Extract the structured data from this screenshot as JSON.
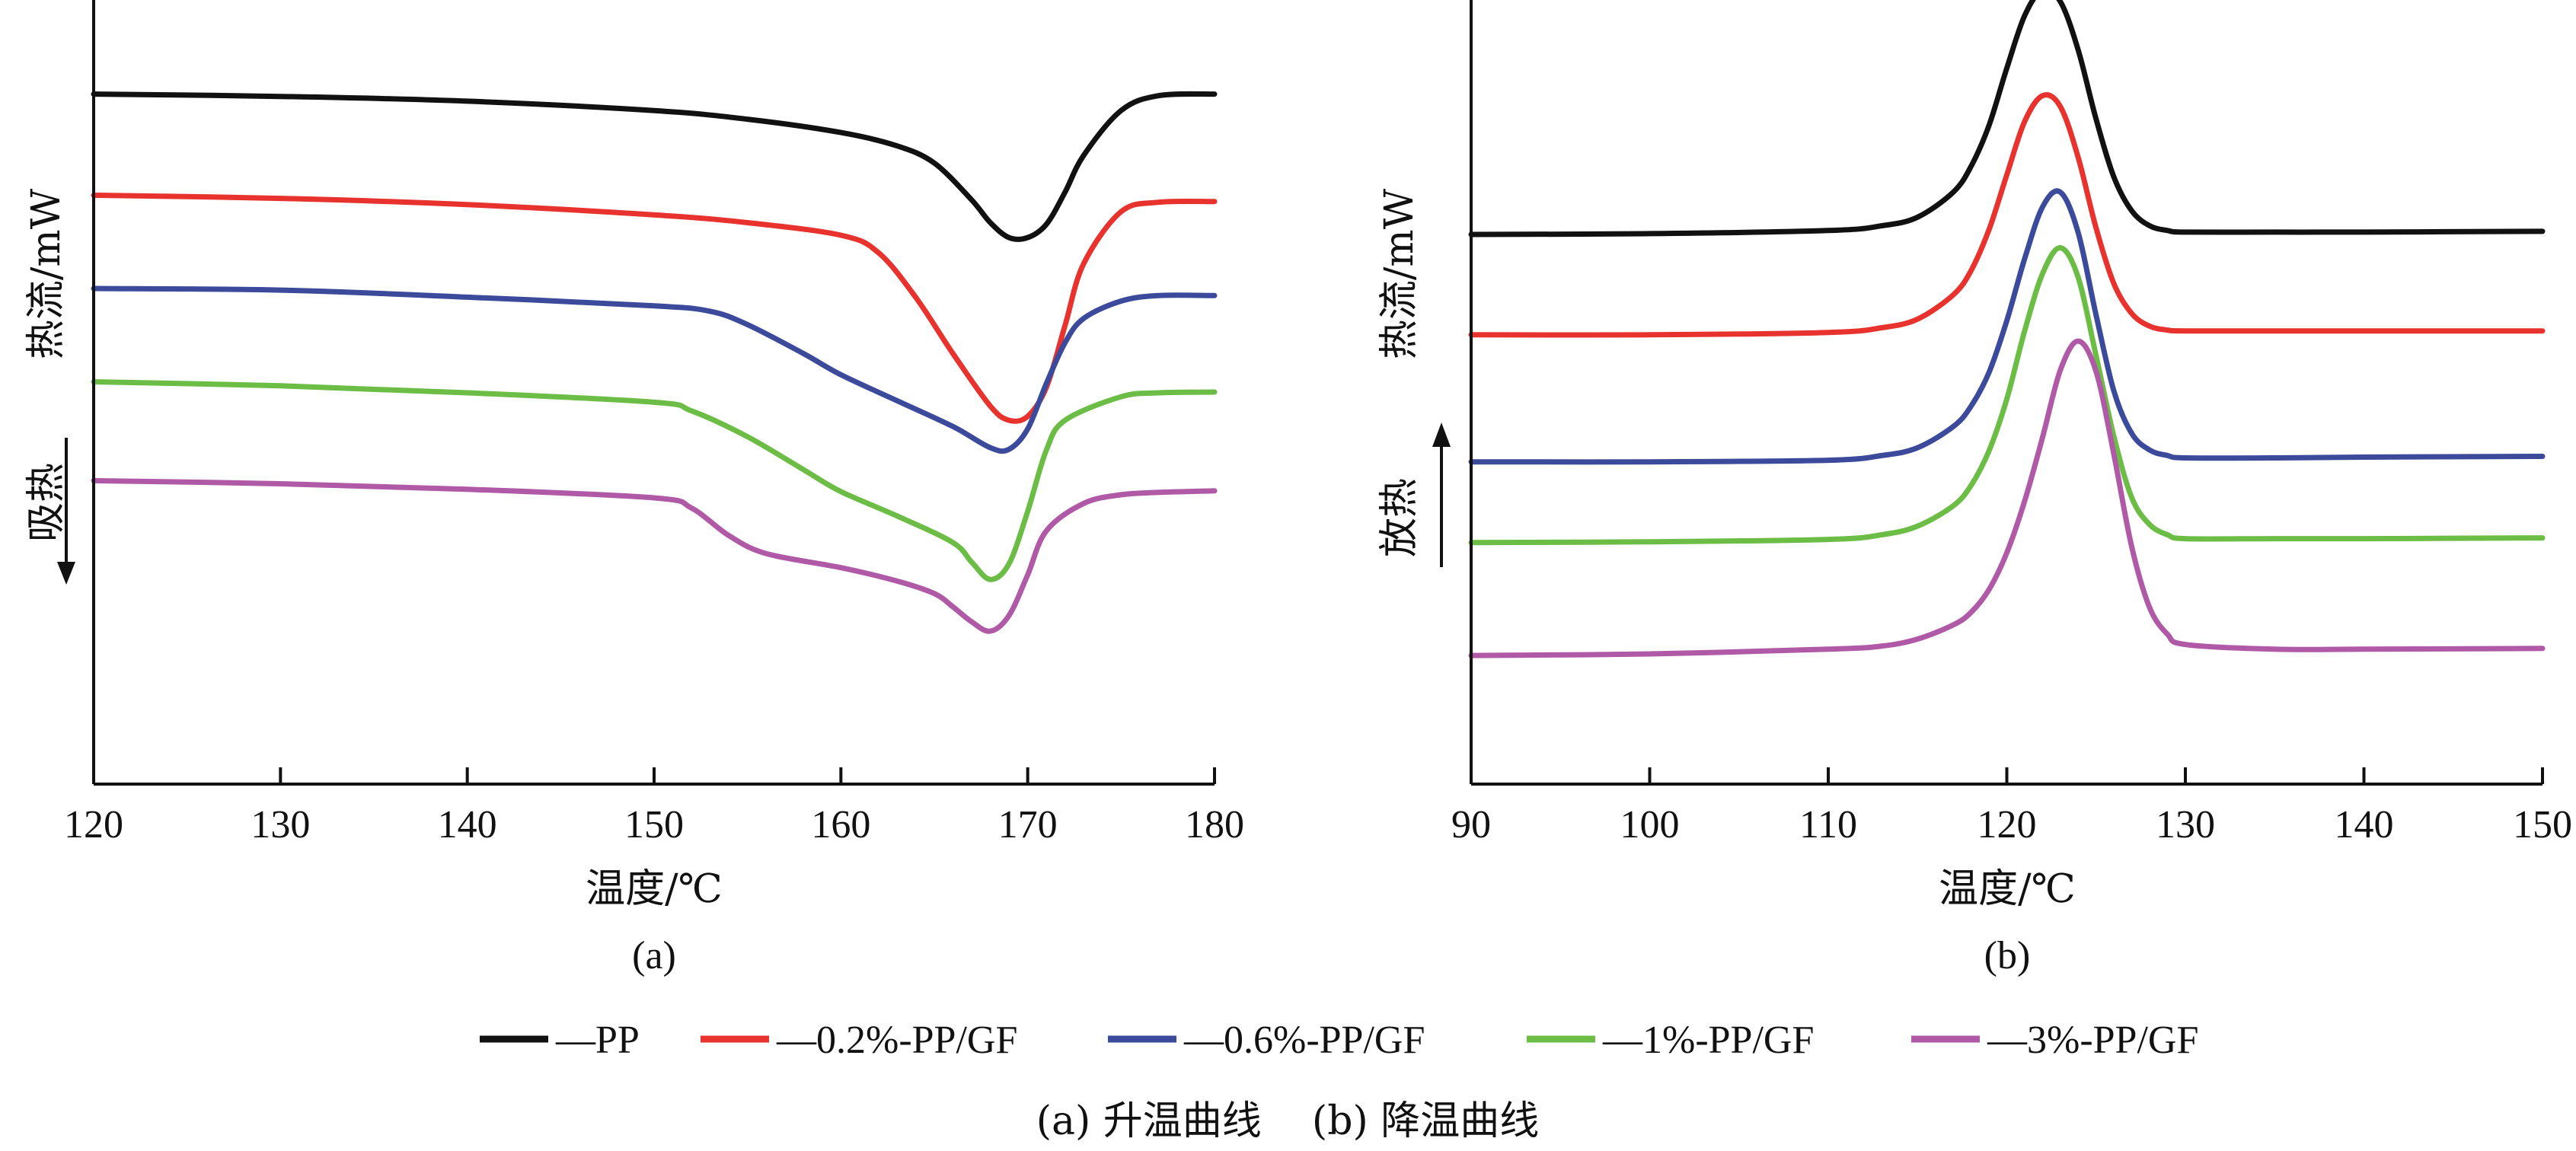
{
  "figure": {
    "caption": "(a) 升温曲线    (b) 降温曲线"
  },
  "legend": [
    {
      "label": "—PP",
      "color": "#111111"
    },
    {
      "label": "—0.2%-PP/GF",
      "color": "#e8322d"
    },
    {
      "label": "—0.6%-PP/GF",
      "color": "#3b4a9a"
    },
    {
      "label": "—1%-PP/GF",
      "color": "#6cbd45"
    },
    {
      "label": "—3%-PP/GF",
      "color": "#b05aa7"
    }
  ],
  "chart_data": [
    {
      "type": "line",
      "panel_label": "(a)",
      "xlabel": "温度/℃",
      "ylabel": "热流/mW",
      "direction_label": "吸热",
      "direction_arrow": "down",
      "xlim": [
        120,
        180
      ],
      "xticks": [
        120,
        130,
        140,
        150,
        160,
        170,
        180
      ],
      "ylim": [
        0,
        100
      ],
      "y_ticks_shown": false,
      "series": [
        {
          "name": "PP",
          "color": "#111111",
          "x": [
            120,
            130,
            140,
            150,
            155,
            160,
            163,
            165,
            167,
            168,
            169,
            170,
            171,
            172,
            173,
            175,
            177,
            180
          ],
          "y": [
            88,
            87.7,
            87.1,
            85.9,
            84.8,
            83.1,
            81.4,
            79.2,
            74.5,
            71.6,
            69.7,
            69.7,
            71.4,
            75.5,
            80.2,
            85.9,
            87.8,
            88
          ]
        },
        {
          "name": "0.2%-PP/GF",
          "color": "#e8322d",
          "x": [
            120,
            130,
            140,
            150,
            155,
            160,
            162,
            164,
            166,
            168,
            169,
            170,
            171,
            172,
            173,
            175,
            177,
            180
          ],
          "y": [
            75.1,
            74.7,
            73.9,
            72.6,
            71.6,
            70,
            67.8,
            62.1,
            54.9,
            48.2,
            46.4,
            46.9,
            50.6,
            58.5,
            66.4,
            73,
            74.2,
            74.3
          ]
        },
        {
          "name": "0.6%-PP/GF",
          "color": "#3b4a9a",
          "x": [
            120,
            130,
            140,
            150,
            153,
            155,
            158,
            160,
            163,
            166,
            168,
            169,
            170,
            171,
            172,
            173,
            175,
            177,
            180
          ],
          "y": [
            63.2,
            63,
            62.1,
            61,
            60.3,
            58.6,
            54.9,
            52.2,
            48.9,
            45.6,
            42.9,
            42.7,
            45.3,
            51.1,
            56.3,
            59.4,
            61.6,
            62.3,
            62.3
          ]
        },
        {
          "name": "1%-PP/GF",
          "color": "#6cbd45",
          "x": [
            120,
            130,
            140,
            150,
            152,
            155,
            158,
            160,
            163,
            166,
            167,
            168,
            169,
            170,
            171,
            172,
            175,
            177,
            180
          ],
          "y": [
            51.3,
            50.8,
            49.9,
            48.7,
            47.6,
            44.3,
            40.1,
            37.3,
            34.2,
            30.8,
            28.3,
            26.1,
            28.1,
            34.8,
            42.6,
            46.4,
            49.4,
            49.9,
            50
          ]
        },
        {
          "name": "3%-PP/GF",
          "color": "#b05aa7",
          "x": [
            120,
            130,
            140,
            150,
            152,
            154,
            156,
            160,
            163,
            165,
            166,
            167,
            168,
            169,
            170,
            171,
            173,
            175,
            177,
            180
          ],
          "y": [
            38.7,
            38.3,
            37.6,
            36.5,
            35.2,
            31.7,
            29.4,
            27.6,
            25.9,
            24.3,
            22.6,
            20.7,
            19.5,
            21.5,
            26.7,
            32.3,
            35.8,
            36.9,
            37.2,
            37.4
          ]
        }
      ]
    },
    {
      "type": "line",
      "panel_label": "(b)",
      "xlabel": "温度/℃",
      "ylabel": "热流/mW",
      "direction_label": "放热",
      "direction_arrow": "up",
      "xlim": [
        90,
        150
      ],
      "xticks": [
        90,
        100,
        110,
        120,
        130,
        140,
        150
      ],
      "ylim": [
        0,
        100
      ],
      "y_ticks_shown": false,
      "series": [
        {
          "name": "PP",
          "color": "#111111",
          "x": [
            90,
            100,
            110,
            113,
            115,
            117,
            118,
            119,
            120,
            121,
            122,
            123,
            124,
            125,
            126,
            127,
            128,
            129,
            130,
            135,
            140,
            150
          ],
          "y": [
            70.1,
            70.2,
            70.6,
            71.2,
            72.3,
            75.5,
            78.8,
            84,
            91.3,
            98,
            101.3,
            99.8,
            93.6,
            84.8,
            77.4,
            73.1,
            71.2,
            70.6,
            70.4,
            70.4,
            70.4,
            70.5
          ]
        },
        {
          "name": "0.2%-PP/GF",
          "color": "#e8322d",
          "x": [
            90,
            100,
            110,
            113,
            115,
            117,
            118,
            119,
            120,
            121,
            122,
            123,
            124,
            125,
            126,
            127,
            128,
            129,
            130,
            135,
            140,
            150
          ],
          "y": [
            57.3,
            57.3,
            57.6,
            58.2,
            59.3,
            62.4,
            65.5,
            70.7,
            77.7,
            84.5,
            87.8,
            86.4,
            79.9,
            70.9,
            63.8,
            60,
            58.4,
            57.9,
            57.8,
            57.8,
            57.8,
            57.8
          ]
        },
        {
          "name": "0.6%-PP/GF",
          "color": "#3b4a9a",
          "x": [
            90,
            100,
            110,
            113,
            115,
            117,
            118,
            119,
            120,
            121,
            122,
            123,
            124,
            125,
            126,
            127,
            128,
            129,
            130,
            135,
            140,
            150
          ],
          "y": [
            41.1,
            41.1,
            41.3,
            41.9,
            42.9,
            45.6,
            48.2,
            52.5,
            59.1,
            67,
            73.6,
            75.5,
            70.3,
            59.8,
            50.1,
            44.7,
            42.6,
            41.9,
            41.6,
            41.6,
            41.7,
            41.8
          ]
        },
        {
          "name": "1%-PP/GF",
          "color": "#6cbd45",
          "x": [
            90,
            100,
            110,
            113,
            115,
            117,
            118,
            119,
            120,
            121,
            122,
            123,
            124,
            125,
            126,
            127,
            128,
            129,
            130,
            135,
            140,
            150
          ],
          "y": [
            30.8,
            30.9,
            31.2,
            31.8,
            32.9,
            35.5,
            38.1,
            42.5,
            49.1,
            57.8,
            65.1,
            68.4,
            64.6,
            54.6,
            44.3,
            36.5,
            33.1,
            31.8,
            31.3,
            31.3,
            31.3,
            31.4
          ]
        },
        {
          "name": "3%-PP/GF",
          "color": "#b05aa7",
          "x": [
            90,
            100,
            110,
            113,
            115,
            117,
            118,
            119,
            120,
            121,
            122,
            123,
            124,
            125,
            126,
            127,
            128,
            129,
            130,
            135,
            140,
            150
          ],
          "y": [
            16.4,
            16.6,
            17.2,
            17.6,
            18.5,
            20.3,
            21.9,
            24.8,
            29.5,
            36.1,
            44.2,
            52.8,
            56.5,
            52.6,
            42,
            30.2,
            22.5,
            19.1,
            17.8,
            17.2,
            17.2,
            17.3
          ]
        }
      ]
    }
  ]
}
